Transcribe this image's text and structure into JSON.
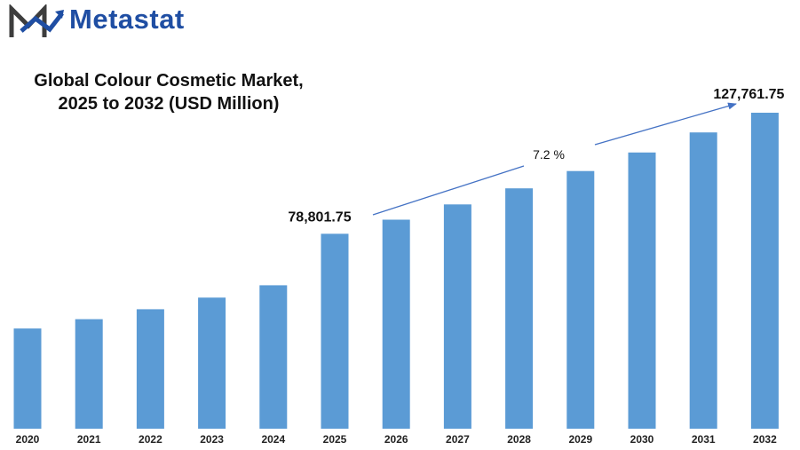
{
  "brand": {
    "name": "Metastat",
    "color": "#1f4ea3",
    "mark_color": "#3d3d3d"
  },
  "title": {
    "line1": "Global Colour Cosmetic Market,",
    "line2": "2025 to 2032 (USD Million)"
  },
  "chart_data": {
    "type": "bar",
    "bar_color": "#5b9bd5",
    "categories": [
      "2020",
      "2021",
      "2022",
      "2023",
      "2024",
      "2025",
      "2026",
      "2027",
      "2028",
      "2029",
      "2030",
      "2031",
      "2032"
    ],
    "values": [
      40500,
      44300,
      48300,
      53000,
      58000,
      78801.75,
      84500,
      90700,
      97200,
      104200,
      111700,
      119800,
      127761.75
    ],
    "ylim": [
      0,
      130000
    ],
    "annotations": {
      "start_label": "78,801.75",
      "end_label": "127,761.75",
      "cagr_label": "7.2 %"
    },
    "grid": false,
    "legend": "none"
  }
}
